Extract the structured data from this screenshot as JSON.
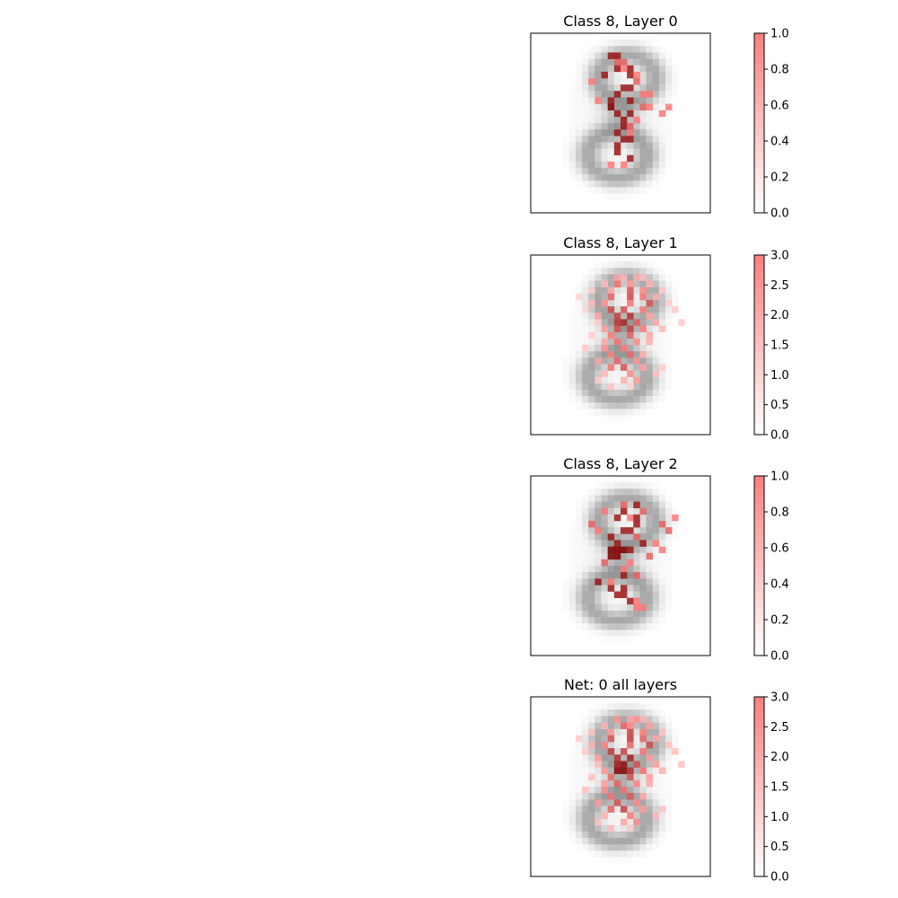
{
  "chart_data": [
    {
      "type": "heatmap",
      "title": "Class 8, Layer 0",
      "colorbar": {
        "range": [
          0,
          1.0
        ],
        "ticks": [
          "0.0",
          "0.2",
          "0.4",
          "0.6",
          "0.8",
          "1.0"
        ]
      },
      "highlights": [
        [
          3,
          6,
          0.9
        ],
        [
          3,
          7,
          0.9
        ],
        [
          4,
          7,
          0.6
        ],
        [
          4,
          8,
          0.6
        ],
        [
          5,
          7,
          0.9
        ],
        [
          5,
          9,
          0.9
        ],
        [
          5,
          8,
          0.5
        ],
        [
          6,
          5,
          0.9
        ],
        [
          6,
          9,
          0.9
        ],
        [
          6,
          10,
          0.5
        ],
        [
          7,
          3,
          0.5
        ],
        [
          7,
          10,
          0.6
        ],
        [
          8,
          8,
          0.9
        ],
        [
          8,
          9,
          0.9
        ],
        [
          9,
          7,
          0.9
        ],
        [
          9,
          12,
          0.5
        ],
        [
          9,
          11,
          0.5
        ],
        [
          10,
          6,
          0.9
        ],
        [
          10,
          9,
          0.9
        ],
        [
          10,
          4,
          0.5
        ],
        [
          11,
          6,
          1.0
        ],
        [
          11,
          11,
          0.6
        ],
        [
          11,
          12,
          0.5
        ],
        [
          11,
          15,
          0.5
        ],
        [
          12,
          7,
          0.9
        ],
        [
          12,
          9,
          0.9
        ],
        [
          12,
          14,
          0.5
        ],
        [
          13,
          8,
          0.9
        ],
        [
          13,
          10,
          0.5
        ],
        [
          14,
          8,
          0.9
        ],
        [
          14,
          9,
          0.6
        ],
        [
          15,
          7,
          0.9
        ],
        [
          15,
          9,
          0.5
        ],
        [
          16,
          8,
          0.9
        ],
        [
          16,
          9,
          0.9
        ],
        [
          17,
          7,
          0.9
        ],
        [
          18,
          7,
          0.9
        ],
        [
          19,
          9,
          0.9
        ],
        [
          20,
          8,
          0.5
        ],
        [
          20,
          6,
          0.5
        ]
      ]
    },
    {
      "type": "heatmap",
      "title": "Class 8, Layer 1",
      "colorbar": {
        "range": [
          0,
          3.0
        ],
        "ticks": [
          "0.0",
          "0.5",
          "1.0",
          "1.5",
          "2.0",
          "2.5",
          "3.0"
        ]
      },
      "highlights": [
        [
          3,
          7,
          1.0
        ],
        [
          3,
          8,
          0.8
        ],
        [
          3,
          10,
          0.9
        ],
        [
          3,
          11,
          0.7
        ],
        [
          4,
          5,
          0.7
        ],
        [
          4,
          7,
          1.6
        ],
        [
          4,
          9,
          1.2
        ],
        [
          4,
          12,
          0.8
        ],
        [
          5,
          3,
          0.6
        ],
        [
          5,
          6,
          1.0
        ],
        [
          5,
          9,
          2.0
        ],
        [
          5,
          11,
          1.3
        ],
        [
          5,
          14,
          0.6
        ],
        [
          6,
          1,
          0.5
        ],
        [
          6,
          6,
          1.8
        ],
        [
          6,
          9,
          2.1
        ],
        [
          6,
          11,
          1.6
        ],
        [
          6,
          13,
          0.9
        ],
        [
          7,
          3,
          0.8
        ],
        [
          7,
          5,
          1.2
        ],
        [
          7,
          9,
          1.6
        ],
        [
          7,
          12,
          2.0
        ],
        [
          7,
          15,
          0.6
        ],
        [
          8,
          2,
          0.5
        ],
        [
          8,
          6,
          2.1
        ],
        [
          8,
          8,
          2.0
        ],
        [
          8,
          11,
          1.5
        ],
        [
          8,
          16,
          0.6
        ],
        [
          9,
          4,
          1.0
        ],
        [
          9,
          7,
          2.2
        ],
        [
          9,
          9,
          2.4
        ],
        [
          9,
          12,
          1.0
        ],
        [
          10,
          4,
          0.6
        ],
        [
          10,
          7,
          2.3
        ],
        [
          10,
          8,
          2.5
        ],
        [
          10,
          10,
          1.8
        ],
        [
          10,
          13,
          1.0
        ],
        [
          10,
          17,
          0.6
        ],
        [
          11,
          5,
          1.1
        ],
        [
          11,
          7,
          2.0
        ],
        [
          11,
          9,
          2.2
        ],
        [
          11,
          11,
          1.5
        ],
        [
          11,
          14,
          0.8
        ],
        [
          12,
          3,
          0.6
        ],
        [
          12,
          6,
          1.5
        ],
        [
          12,
          9,
          1.8
        ],
        [
          12,
          12,
          1.0
        ],
        [
          13,
          5,
          1.0
        ],
        [
          13,
          7,
          1.6
        ],
        [
          13,
          10,
          1.3
        ],
        [
          13,
          12,
          0.9
        ],
        [
          14,
          2,
          0.6
        ],
        [
          14,
          5,
          1.2
        ],
        [
          14,
          8,
          1.5
        ],
        [
          15,
          6,
          1.4
        ],
        [
          15,
          9,
          1.7
        ],
        [
          15,
          11,
          0.9
        ],
        [
          16,
          4,
          1.0
        ],
        [
          16,
          7,
          1.8
        ],
        [
          16,
          10,
          1.2
        ],
        [
          17,
          6,
          1.6
        ],
        [
          17,
          8,
          2.0
        ],
        [
          17,
          11,
          1.0
        ],
        [
          17,
          14,
          0.6
        ],
        [
          18,
          5,
          0.8
        ],
        [
          18,
          9,
          1.3
        ],
        [
          18,
          13,
          0.7
        ],
        [
          19,
          4,
          0.6
        ],
        [
          19,
          8,
          0.9
        ],
        [
          19,
          10,
          1.1
        ],
        [
          20,
          6,
          0.7
        ],
        [
          20,
          9,
          0.5
        ]
      ]
    },
    {
      "type": "heatmap",
      "title": "Class 8, Layer 2",
      "colorbar": {
        "range": [
          0,
          1.0
        ],
        "ticks": [
          "0.0",
          "0.2",
          "0.4",
          "0.6",
          "0.8",
          "1.0"
        ]
      },
      "highlights": [
        [
          4,
          8,
          0.6
        ],
        [
          4,
          10,
          0.9
        ],
        [
          5,
          5,
          0.5
        ],
        [
          5,
          8,
          0.9
        ],
        [
          5,
          11,
          0.6
        ],
        [
          6,
          7,
          0.9
        ],
        [
          6,
          9,
          0.5
        ],
        [
          6,
          10,
          0.9
        ],
        [
          6,
          16,
          0.5
        ],
        [
          7,
          3,
          0.6
        ],
        [
          7,
          10,
          0.9
        ],
        [
          7,
          14,
          0.6
        ],
        [
          8,
          4,
          0.5
        ],
        [
          8,
          8,
          0.9
        ],
        [
          8,
          9,
          0.9
        ],
        [
          8,
          15,
          0.6
        ],
        [
          9,
          6,
          0.9
        ],
        [
          9,
          10,
          0.6
        ],
        [
          10,
          7,
          0.9
        ],
        [
          10,
          11,
          0.9
        ],
        [
          10,
          13,
          0.5
        ],
        [
          11,
          6,
          1.0
        ],
        [
          11,
          7,
          1.0
        ],
        [
          11,
          8,
          1.0
        ],
        [
          11,
          9,
          0.9
        ],
        [
          11,
          14,
          0.5
        ],
        [
          12,
          6,
          1.0
        ],
        [
          12,
          7,
          1.0
        ],
        [
          12,
          12,
          0.6
        ],
        [
          13,
          5,
          0.6
        ],
        [
          13,
          9,
          0.5
        ],
        [
          14,
          8,
          0.5
        ],
        [
          15,
          8,
          0.9
        ],
        [
          15,
          10,
          0.6
        ],
        [
          16,
          4,
          0.9
        ],
        [
          16,
          6,
          0.5
        ],
        [
          17,
          6,
          0.9
        ],
        [
          17,
          8,
          0.9
        ],
        [
          18,
          7,
          0.9
        ],
        [
          18,
          8,
          0.9
        ],
        [
          19,
          9,
          0.9
        ],
        [
          19,
          10,
          0.5
        ],
        [
          20,
          10,
          0.5
        ],
        [
          20,
          11,
          0.5
        ]
      ]
    },
    {
      "type": "heatmap",
      "title": "Net: 0 all layers",
      "colorbar": {
        "range": [
          0,
          3.0
        ],
        "ticks": [
          "0.0",
          "0.5",
          "1.0",
          "1.5",
          "2.0",
          "2.5",
          "3.0"
        ]
      },
      "highlights": [
        [
          3,
          7,
          1.2
        ],
        [
          3,
          9,
          1.0
        ],
        [
          3,
          10,
          1.2
        ],
        [
          3,
          11,
          0.8
        ],
        [
          4,
          5,
          0.8
        ],
        [
          4,
          8,
          1.8
        ],
        [
          4,
          9,
          1.4
        ],
        [
          4,
          12,
          1.0
        ],
        [
          5,
          3,
          0.7
        ],
        [
          5,
          6,
          1.2
        ],
        [
          5,
          9,
          2.2
        ],
        [
          5,
          11,
          1.5
        ],
        [
          5,
          14,
          0.7
        ],
        [
          6,
          1,
          0.6
        ],
        [
          6,
          6,
          2.0
        ],
        [
          6,
          9,
          2.3
        ],
        [
          6,
          11,
          1.8
        ],
        [
          6,
          13,
          1.0
        ],
        [
          7,
          3,
          0.9
        ],
        [
          7,
          5,
          1.4
        ],
        [
          7,
          9,
          1.8
        ],
        [
          7,
          12,
          2.1
        ],
        [
          7,
          15,
          0.7
        ],
        [
          8,
          2,
          0.6
        ],
        [
          8,
          6,
          2.3
        ],
        [
          8,
          8,
          2.2
        ],
        [
          8,
          11,
          1.6
        ],
        [
          8,
          16,
          0.7
        ],
        [
          9,
          4,
          1.1
        ],
        [
          9,
          7,
          2.4
        ],
        [
          9,
          9,
          2.6
        ],
        [
          9,
          12,
          1.1
        ],
        [
          10,
          4,
          0.7
        ],
        [
          10,
          7,
          2.6
        ],
        [
          10,
          8,
          2.8
        ],
        [
          10,
          10,
          2.0
        ],
        [
          10,
          13,
          1.1
        ],
        [
          10,
          17,
          0.7
        ],
        [
          11,
          5,
          1.2
        ],
        [
          11,
          7,
          2.9
        ],
        [
          11,
          8,
          2.9
        ],
        [
          11,
          9,
          2.4
        ],
        [
          11,
          11,
          1.6
        ],
        [
          11,
          14,
          0.9
        ],
        [
          12,
          3,
          0.7
        ],
        [
          12,
          6,
          1.7
        ],
        [
          12,
          9,
          2.0
        ],
        [
          12,
          12,
          1.1
        ],
        [
          13,
          5,
          1.1
        ],
        [
          13,
          7,
          1.8
        ],
        [
          13,
          10,
          1.4
        ],
        [
          13,
          12,
          1.0
        ],
        [
          14,
          2,
          0.7
        ],
        [
          14,
          5,
          1.3
        ],
        [
          14,
          8,
          1.6
        ],
        [
          15,
          6,
          1.6
        ],
        [
          15,
          9,
          1.9
        ],
        [
          15,
          11,
          1.0
        ],
        [
          16,
          4,
          1.1
        ],
        [
          16,
          7,
          2.0
        ],
        [
          16,
          10,
          1.3
        ],
        [
          17,
          6,
          1.8
        ],
        [
          17,
          8,
          2.2
        ],
        [
          17,
          11,
          1.1
        ],
        [
          17,
          14,
          0.7
        ],
        [
          18,
          5,
          0.9
        ],
        [
          18,
          9,
          1.5
        ],
        [
          18,
          13,
          0.8
        ],
        [
          19,
          4,
          0.7
        ],
        [
          19,
          8,
          1.0
        ],
        [
          19,
          10,
          1.3
        ],
        [
          20,
          6,
          0.8
        ],
        [
          20,
          9,
          0.6
        ]
      ]
    }
  ]
}
